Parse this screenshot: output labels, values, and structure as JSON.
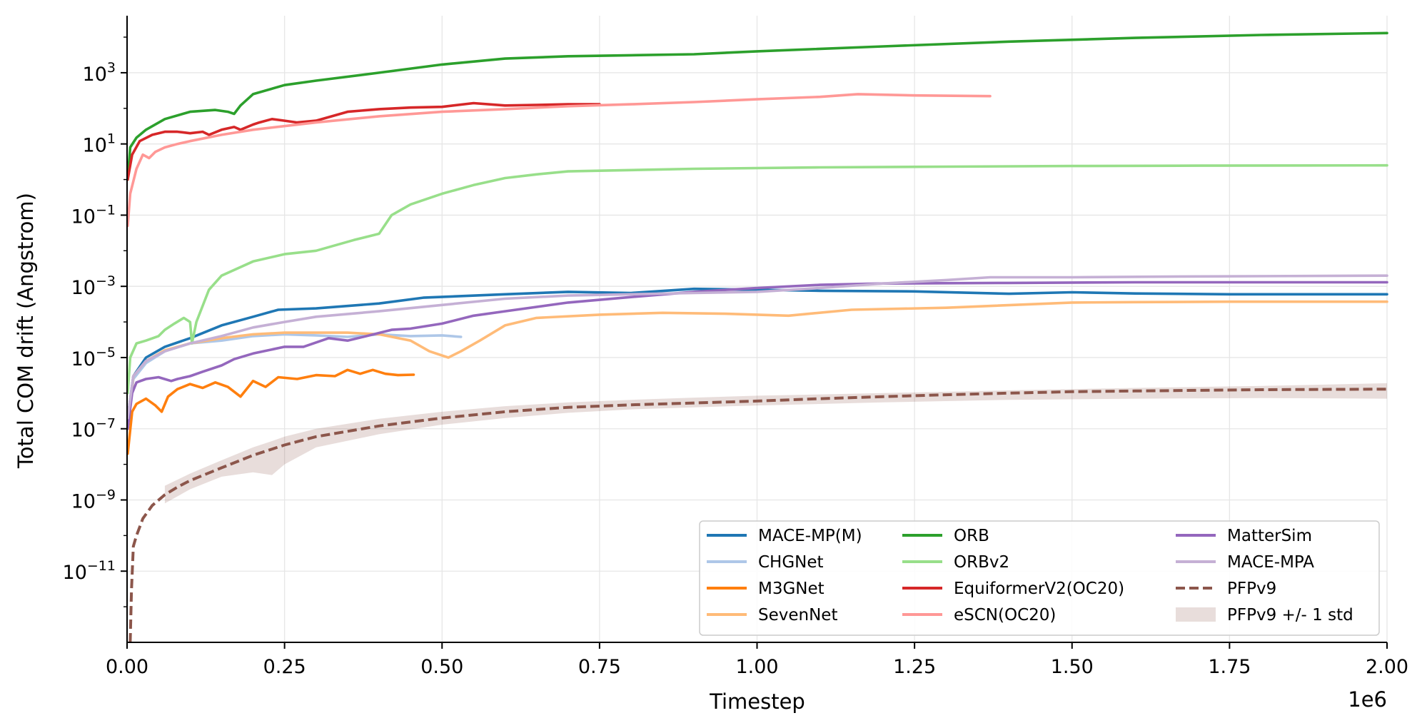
{
  "chart_data": {
    "type": "line",
    "title": "",
    "xlabel": "Timestep",
    "ylabel": "Total COM drift (Angstrom)",
    "x_offset_label": "1e6",
    "xscale": "linear",
    "yscale": "log",
    "xlim": [
      0,
      2000000
    ],
    "ylim": [
      1e-13,
      40000.0
    ],
    "x_ticks": [
      0,
      250000,
      500000,
      750000,
      1000000,
      1250000,
      1500000,
      1750000,
      2000000
    ],
    "x_tick_labels": [
      "0.00",
      "0.25",
      "0.50",
      "0.75",
      "1.00",
      "1.25",
      "1.50",
      "1.75",
      "2.00"
    ],
    "y_ticks": [
      1e-11,
      1e-09,
      1e-07,
      1e-05,
      0.001,
      0.1,
      10.0,
      1000.0
    ],
    "y_tick_bases": [
      "10",
      "10",
      "10",
      "10",
      "10",
      "10",
      "10",
      "10"
    ],
    "y_tick_exps": [
      "−11",
      "−9",
      "−7",
      "−5",
      "−3",
      "−1",
      "1",
      "3"
    ],
    "grid": true,
    "legend_position": "bottom-right",
    "series": [
      {
        "name": "MACE-MP(M)",
        "color": "#1f77b4",
        "style": "solid",
        "x": [
          1000,
          10000,
          30000,
          60000,
          100000,
          150000,
          200000,
          240000,
          300000,
          400000,
          470000,
          600000,
          700000,
          800000,
          900000,
          1000000,
          1100000,
          1250000,
          1400000,
          1500000,
          1600000,
          1750000,
          2000000
        ],
        "y": [
          2e-07,
          3e-06,
          1e-05,
          2e-05,
          3.5e-05,
          8e-05,
          0.00014,
          0.00022,
          0.00024,
          0.00033,
          0.00048,
          0.0006,
          0.0007,
          0.00065,
          0.00085,
          0.0008,
          0.00075,
          0.00072,
          0.00062,
          0.00068,
          0.00063,
          0.0006,
          0.0006
        ]
      },
      {
        "name": "CHGNet",
        "color": "#aec7e8",
        "style": "solid",
        "x": [
          1000,
          10000,
          30000,
          60000,
          100000,
          150000,
          200000,
          250000,
          300000,
          350000,
          400000,
          450000,
          500000,
          530000
        ],
        "y": [
          1e-07,
          2.5e-06,
          7e-06,
          1.5e-05,
          2.5e-05,
          3e-05,
          4e-05,
          4.5e-05,
          4.2e-05,
          3.8e-05,
          4.5e-05,
          4e-05,
          4.2e-05,
          3.8e-05
        ]
      },
      {
        "name": "M3GNet",
        "color": "#ff7f0e",
        "style": "solid",
        "x": [
          1000,
          8000,
          15000,
          30000,
          45000,
          55000,
          65000,
          80000,
          100000,
          120000,
          140000,
          160000,
          180000,
          200000,
          220000,
          240000,
          270000,
          300000,
          330000,
          350000,
          370000,
          390000,
          410000,
          430000,
          455000
        ],
        "y": [
          2e-08,
          3e-07,
          5e-07,
          7e-07,
          4.5e-07,
          3e-07,
          8e-07,
          1.3e-06,
          1.8e-06,
          1.4e-06,
          2e-06,
          1.5e-06,
          8e-07,
          2.2e-06,
          1.5e-06,
          2.8e-06,
          2.5e-06,
          3.2e-06,
          3e-06,
          4.5e-06,
          3.5e-06,
          4.5e-06,
          3.5e-06,
          3.2e-06,
          3.3e-06
        ]
      },
      {
        "name": "SevenNet",
        "color": "#ffbb78",
        "style": "solid",
        "x": [
          1000,
          10000,
          30000,
          60000,
          100000,
          150000,
          200000,
          250000,
          300000,
          350000,
          400000,
          450000,
          480000,
          510000,
          530000,
          560000,
          600000,
          650000,
          750000,
          850000,
          950000,
          1050000,
          1150000,
          1300000,
          1500000,
          1600000,
          1750000,
          2000000
        ],
        "y": [
          1e-07,
          3e-06,
          8e-06,
          1.6e-05,
          2.5e-05,
          3.5e-05,
          4.5e-05,
          5e-05,
          5e-05,
          5e-05,
          4.5e-05,
          3e-05,
          1.5e-05,
          1e-05,
          1.5e-05,
          3e-05,
          8e-05,
          0.00013,
          0.00016,
          0.00018,
          0.00017,
          0.00015,
          0.00022,
          0.00025,
          0.00035,
          0.00036,
          0.00037,
          0.00037
        ]
      },
      {
        "name": "ORB",
        "color": "#2ca02c",
        "style": "solid",
        "x": [
          1000,
          5000,
          15000,
          30000,
          60000,
          100000,
          140000,
          160000,
          170000,
          180000,
          200000,
          250000,
          300000,
          400000,
          500000,
          600000,
          700000,
          800000,
          900000,
          1000000,
          1200000,
          1400000,
          1600000,
          1800000,
          2000000
        ],
        "y": [
          1,
          8,
          15,
          25,
          50,
          80,
          90,
          80,
          70,
          120,
          250,
          450,
          600,
          1000,
          1700,
          2500,
          2900,
          3100,
          3300,
          4000,
          5500,
          7500,
          9500,
          11500,
          13000
        ]
      },
      {
        "name": "ORBv2",
        "color": "#98df8a",
        "style": "solid",
        "x": [
          1000,
          5000,
          15000,
          30000,
          50000,
          60000,
          75000,
          90000,
          100000,
          103000,
          110000,
          130000,
          150000,
          200000,
          250000,
          300000,
          360000,
          400000,
          420000,
          450000,
          500000,
          550000,
          600000,
          650000,
          700000,
          900000,
          1100000,
          1300000,
          1500000,
          1700000,
          2000000
        ],
        "y": [
          1e-06,
          1e-05,
          2.5e-05,
          3e-05,
          4e-05,
          6e-05,
          9e-05,
          0.00013,
          0.0001,
          2.5e-05,
          0.0001,
          0.0008,
          0.002,
          0.005,
          0.008,
          0.01,
          0.02,
          0.03,
          0.1,
          0.2,
          0.4,
          0.7,
          1.1,
          1.4,
          1.7,
          2,
          2.2,
          2.3,
          2.4,
          2.45,
          2.5
        ]
      },
      {
        "name": "EquiformerV2(OC20)",
        "color": "#d62728",
        "style": "solid",
        "x": [
          1000,
          8000,
          20000,
          40000,
          60000,
          80000,
          100000,
          120000,
          130000,
          150000,
          170000,
          180000,
          200000,
          210000,
          230000,
          250000,
          270000,
          300000,
          350000,
          400000,
          450000,
          500000,
          550000,
          600000,
          650000,
          700000,
          750000
        ],
        "y": [
          1,
          5,
          12,
          18,
          22,
          22,
          20,
          22,
          18,
          25,
          30,
          25,
          35,
          40,
          50,
          45,
          40,
          45,
          80,
          95,
          105,
          110,
          140,
          120,
          125,
          130,
          130
        ]
      },
      {
        "name": "eSCN(OC20)",
        "color": "#ff9896",
        "style": "solid",
        "x": [
          1000,
          5000,
          15000,
          25000,
          35000,
          45000,
          60000,
          80000,
          100000,
          150000,
          200000,
          300000,
          400000,
          500000,
          600000,
          700000,
          800000,
          900000,
          1000000,
          1100000,
          1160000,
          1250000,
          1370000
        ],
        "y": [
          0.05,
          0.4,
          2,
          5,
          4,
          6,
          8,
          10,
          12,
          18,
          25,
          40,
          60,
          80,
          95,
          115,
          130,
          150,
          180,
          210,
          250,
          230,
          220
        ]
      },
      {
        "name": "MatterSim",
        "color": "#9467bd",
        "style": "solid",
        "x": [
          1000,
          8000,
          15000,
          30000,
          50000,
          70000,
          80000,
          100000,
          120000,
          150000,
          170000,
          200000,
          250000,
          280000,
          320000,
          350000,
          380000,
          420000,
          450000,
          500000,
          550000,
          600000,
          700000,
          800000,
          900000,
          1000000,
          1100000,
          1200000,
          1400000,
          1600000,
          1800000,
          2000000
        ],
        "y": [
          1e-07,
          1e-06,
          2e-06,
          2.5e-06,
          2.8e-06,
          2.2e-06,
          2.5e-06,
          3e-06,
          4e-06,
          6e-06,
          9e-06,
          1.3e-05,
          2e-05,
          2e-05,
          3.5e-05,
          3e-05,
          4e-05,
          6e-05,
          6.5e-05,
          9e-05,
          0.00015,
          0.0002,
          0.00035,
          0.0005,
          0.0007,
          0.0009,
          0.0011,
          0.0012,
          0.00125,
          0.0013,
          0.0013,
          0.0013
        ]
      },
      {
        "name": "MACE-MPA",
        "color": "#c5b0d5",
        "style": "solid",
        "x": [
          1000,
          10000,
          30000,
          60000,
          100000,
          150000,
          200000,
          250000,
          300000,
          400000,
          500000,
          600000,
          700000,
          800000,
          900000,
          1000000,
          1100000,
          1200000,
          1300000,
          1370000,
          1500000,
          1700000,
          2000000
        ],
        "y": [
          2e-07,
          3e-06,
          8e-06,
          1.5e-05,
          2.5e-05,
          4e-05,
          7e-05,
          0.0001,
          0.00014,
          0.0002,
          0.0003,
          0.00045,
          0.00055,
          0.0006,
          0.00065,
          0.0007,
          0.0009,
          0.0012,
          0.0015,
          0.0018,
          0.0018,
          0.0019,
          0.002
        ]
      },
      {
        "name": "PFPv9",
        "color": "#8c564b",
        "style": "dashed",
        "x": [
          5000,
          7000,
          10000,
          15000,
          25000,
          40000,
          60000,
          80000,
          100000,
          150000,
          200000,
          250000,
          300000,
          400000,
          500000,
          600000,
          700000,
          800000,
          900000,
          1000000,
          1100000,
          1200000,
          1300000,
          1400000,
          1500000,
          1600000,
          1700000,
          1800000,
          2000000
        ],
        "y": [
          1e-13,
          3e-12,
          5e-11,
          1e-10,
          3e-10,
          7e-10,
          1.4e-09,
          2.3e-09,
          3.5e-09,
          8e-09,
          1.8e-08,
          3.5e-08,
          6e-08,
          1.2e-07,
          2e-07,
          3e-07,
          4e-07,
          4.7e-07,
          5.3e-07,
          6e-07,
          7e-07,
          8e-07,
          9e-07,
          1e-06,
          1.1e-06,
          1.15e-06,
          1.2e-06,
          1.25e-06,
          1.3e-06
        ]
      }
    ],
    "band": {
      "name": "PFPv9 +/- 1 std",
      "color": "#8c564b",
      "opacity": 0.2,
      "x": [
        60000,
        100000,
        150000,
        200000,
        230000,
        250000,
        300000,
        400000,
        500000,
        600000,
        700000,
        800000,
        900000,
        1000000,
        1200000,
        1400000,
        1600000,
        1800000,
        2000000
      ],
      "lower": [
        8e-10,
        2e-09,
        4.5e-09,
        6e-09,
        5e-09,
        1e-08,
        3e-08,
        7e-08,
        1.3e-07,
        2e-07,
        2.8e-07,
        3.5e-07,
        4e-07,
        4.5e-07,
        5.5e-07,
        6.5e-07,
        7e-07,
        7.3e-07,
        7e-07
      ],
      "upper": [
        2.5e-09,
        5.5e-09,
        1.3e-08,
        3e-08,
        4.5e-08,
        6e-08,
        1e-07,
        1.9e-07,
        3e-07,
        4.3e-07,
        5.5e-07,
        6.5e-07,
        7.5e-07,
        8.5e-07,
        1e-06,
        1.2e-06,
        1.4e-06,
        1.6e-06,
        1.9e-06
      ]
    },
    "legend": [
      {
        "label": "MACE-MP(M)",
        "color": "#1f77b4",
        "style": "solid"
      },
      {
        "label": "CHGNet",
        "color": "#aec7e8",
        "style": "solid"
      },
      {
        "label": "M3GNet",
        "color": "#ff7f0e",
        "style": "solid"
      },
      {
        "label": "SevenNet",
        "color": "#ffbb78",
        "style": "solid"
      },
      {
        "label": "ORB",
        "color": "#2ca02c",
        "style": "solid"
      },
      {
        "label": "ORBv2",
        "color": "#98df8a",
        "style": "solid"
      },
      {
        "label": "EquiformerV2(OC20)",
        "color": "#d62728",
        "style": "solid"
      },
      {
        "label": "eSCN(OC20)",
        "color": "#ff9896",
        "style": "solid"
      },
      {
        "label": "MatterSim",
        "color": "#9467bd",
        "style": "solid"
      },
      {
        "label": "MACE-MPA",
        "color": "#c5b0d5",
        "style": "solid"
      },
      {
        "label": "PFPv9",
        "color": "#8c564b",
        "style": "dashed"
      },
      {
        "label": "PFPv9 +/- 1 std",
        "color": "#8c564b",
        "style": "patch"
      }
    ]
  }
}
